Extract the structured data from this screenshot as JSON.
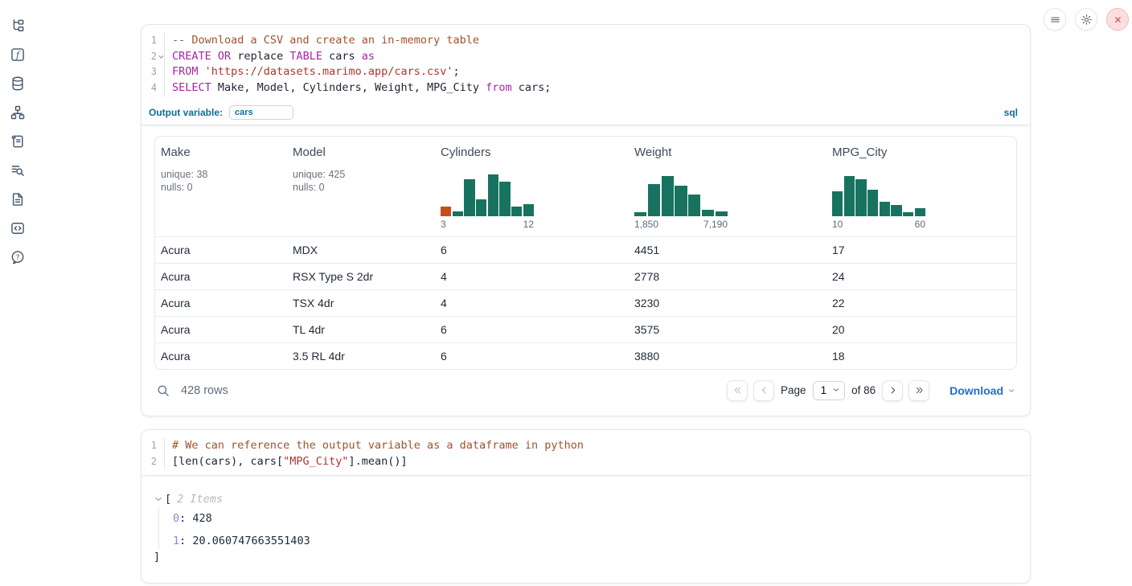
{
  "colors": {
    "keyword": "#a626a4",
    "string": "#b0342c",
    "comment": "#a0522d",
    "accent-blue": "#0b6e99",
    "link-blue": "#1f6fd0",
    "hist-teal": "#17735f",
    "hist-orange": "#c44e1d",
    "close-red": "#d64545",
    "index-purple": "#8a8ad0"
  },
  "sidebar": {
    "items": [
      {
        "name": "file-explorer",
        "icon": "file-tree-icon"
      },
      {
        "name": "variables",
        "icon": "function-square-icon"
      },
      {
        "name": "datasources",
        "icon": "database-icon"
      },
      {
        "name": "dependencies",
        "icon": "sitemap-icon"
      },
      {
        "name": "scratchpad",
        "icon": "scroll-icon"
      },
      {
        "name": "logs",
        "icon": "list-search-icon"
      },
      {
        "name": "documentation",
        "icon": "file-text-icon"
      },
      {
        "name": "snippets",
        "icon": "code-box-icon"
      },
      {
        "name": "help",
        "icon": "help-bubble-icon"
      }
    ]
  },
  "topbar": {
    "buttons": [
      {
        "name": "menu",
        "icon": "hamburger-icon",
        "variant": "plain"
      },
      {
        "name": "settings",
        "icon": "gear-icon",
        "variant": "plain"
      },
      {
        "name": "close",
        "icon": "x-icon",
        "variant": "danger"
      }
    ]
  },
  "sql_cell": {
    "lines": [
      {
        "num": "1",
        "fold": false,
        "tokens": [
          {
            "t": "-- Download a CSV and create an in-memory table",
            "c": "comment"
          }
        ]
      },
      {
        "num": "2",
        "fold": true,
        "tokens": [
          {
            "t": "CREATE",
            "c": "kw"
          },
          {
            "t": " ",
            "c": "plain"
          },
          {
            "t": "OR",
            "c": "kw"
          },
          {
            "t": " replace ",
            "c": "plain"
          },
          {
            "t": "TABLE",
            "c": "kw"
          },
          {
            "t": " cars ",
            "c": "plain"
          },
          {
            "t": "as",
            "c": "kw"
          }
        ]
      },
      {
        "num": "3",
        "fold": false,
        "tokens": [
          {
            "t": "FROM",
            "c": "kw"
          },
          {
            "t": " ",
            "c": "plain"
          },
          {
            "t": "'https://datasets.marimo.app/cars.csv'",
            "c": "str"
          },
          {
            "t": ";",
            "c": "plain"
          }
        ]
      },
      {
        "num": "4",
        "fold": false,
        "tokens": [
          {
            "t": "SELECT",
            "c": "kw"
          },
          {
            "t": " Make, Model, Cylinders, Weight, MPG_City ",
            "c": "plain"
          },
          {
            "t": "from",
            "c": "kw"
          },
          {
            "t": " cars;",
            "c": "plain"
          }
        ]
      }
    ],
    "output_variable_label": "Output variable:",
    "output_variable_value": "cars",
    "language_badge": "sql"
  },
  "table": {
    "columns": [
      {
        "name": "Make",
        "stats": [
          "unique: 38",
          "nulls: 0"
        ]
      },
      {
        "name": "Model",
        "stats": [
          "unique: 425",
          "nulls: 0"
        ]
      },
      {
        "name": "Cylinders",
        "histogram": {
          "values": [
            23,
            12,
            88,
            40,
            100,
            83,
            22,
            28
          ],
          "highlight_first": true,
          "min_label": "3",
          "max_label": "12"
        }
      },
      {
        "name": "Weight",
        "histogram": {
          "values": [
            10,
            76,
            95,
            72,
            51,
            16,
            12
          ],
          "highlight_first": false,
          "min_label": "1,850",
          "max_label": "7,190"
        }
      },
      {
        "name": "MPG_City",
        "histogram": {
          "values": [
            60,
            95,
            88,
            63,
            34,
            27,
            10,
            18
          ],
          "highlight_first": false,
          "min_label": "10",
          "max_label": "60"
        }
      }
    ],
    "rows": [
      [
        "Acura",
        "MDX",
        "6",
        "4451",
        "17"
      ],
      [
        "Acura",
        "RSX Type S 2dr",
        "4",
        "2778",
        "24"
      ],
      [
        "Acura",
        "TSX 4dr",
        "4",
        "3230",
        "22"
      ],
      [
        "Acura",
        "TL 4dr",
        "6",
        "3575",
        "20"
      ],
      [
        "Acura",
        "3.5 RL 4dr",
        "6",
        "3880",
        "18"
      ]
    ],
    "footer": {
      "row_count": "428 rows",
      "page_label": "Page",
      "page_value": "1",
      "of_label": "of 86",
      "download_label": "Download"
    }
  },
  "python_cell": {
    "lines": [
      {
        "num": "1",
        "fold": false,
        "tokens": [
          {
            "t": "# We can reference the output variable as a dataframe in python",
            "c": "comment"
          }
        ]
      },
      {
        "num": "2",
        "fold": false,
        "tokens": [
          {
            "t": "[len(cars), cars[",
            "c": "plain"
          },
          {
            "t": "\"MPG_City\"",
            "c": "str"
          },
          {
            "t": "].mean()]",
            "c": "plain"
          }
        ]
      }
    ],
    "output": {
      "open_bracket": "[",
      "items_label": "2 Items",
      "entries": [
        {
          "index": "0",
          "value": "428"
        },
        {
          "index": "1",
          "value": "20.060747663551403"
        }
      ],
      "close_bracket": "]"
    }
  }
}
